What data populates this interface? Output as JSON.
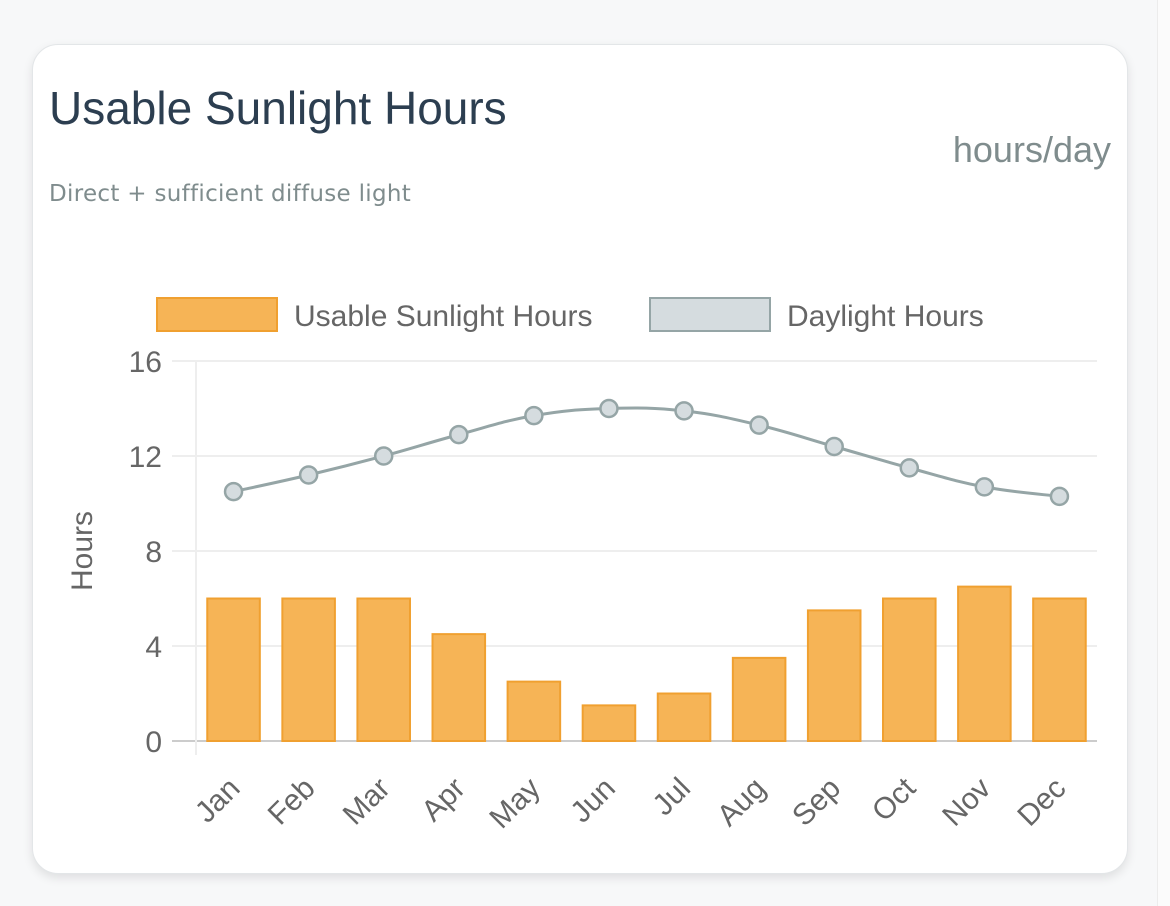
{
  "card": {
    "title": "Usable Sunlight Hours",
    "unit": "hours/day",
    "subtitle": "Direct + sufficient diffuse light"
  },
  "colors": {
    "usable_fill": "#f6b456",
    "usable_border": "#f0a030",
    "daylight_line": "#95a5a6",
    "daylight_point": "#d5dcdf",
    "grid": "#eeeeee",
    "axis_text": "#666666"
  },
  "chart_data": {
    "type": "bar",
    "categories": [
      "Jan",
      "Feb",
      "Mar",
      "Apr",
      "May",
      "Jun",
      "Jul",
      "Aug",
      "Sep",
      "Oct",
      "Nov",
      "Dec"
    ],
    "series": [
      {
        "name": "Usable Sunlight Hours",
        "type": "bar",
        "values": [
          6,
          6,
          6,
          4.5,
          2.5,
          1.5,
          2,
          3.5,
          5.5,
          6,
          6.5,
          6
        ]
      },
      {
        "name": "Daylight Hours",
        "type": "line",
        "values": [
          10.5,
          11.2,
          12,
          12.9,
          13.7,
          14,
          13.9,
          13.3,
          12.4,
          11.5,
          10.7,
          10.3
        ]
      }
    ],
    "title": "",
    "xlabel": "",
    "ylabel": "Hours",
    "ylim": [
      0,
      16
    ],
    "yticks": [
      0,
      4,
      8,
      12,
      16
    ],
    "grid": true,
    "legend_position": "top"
  }
}
